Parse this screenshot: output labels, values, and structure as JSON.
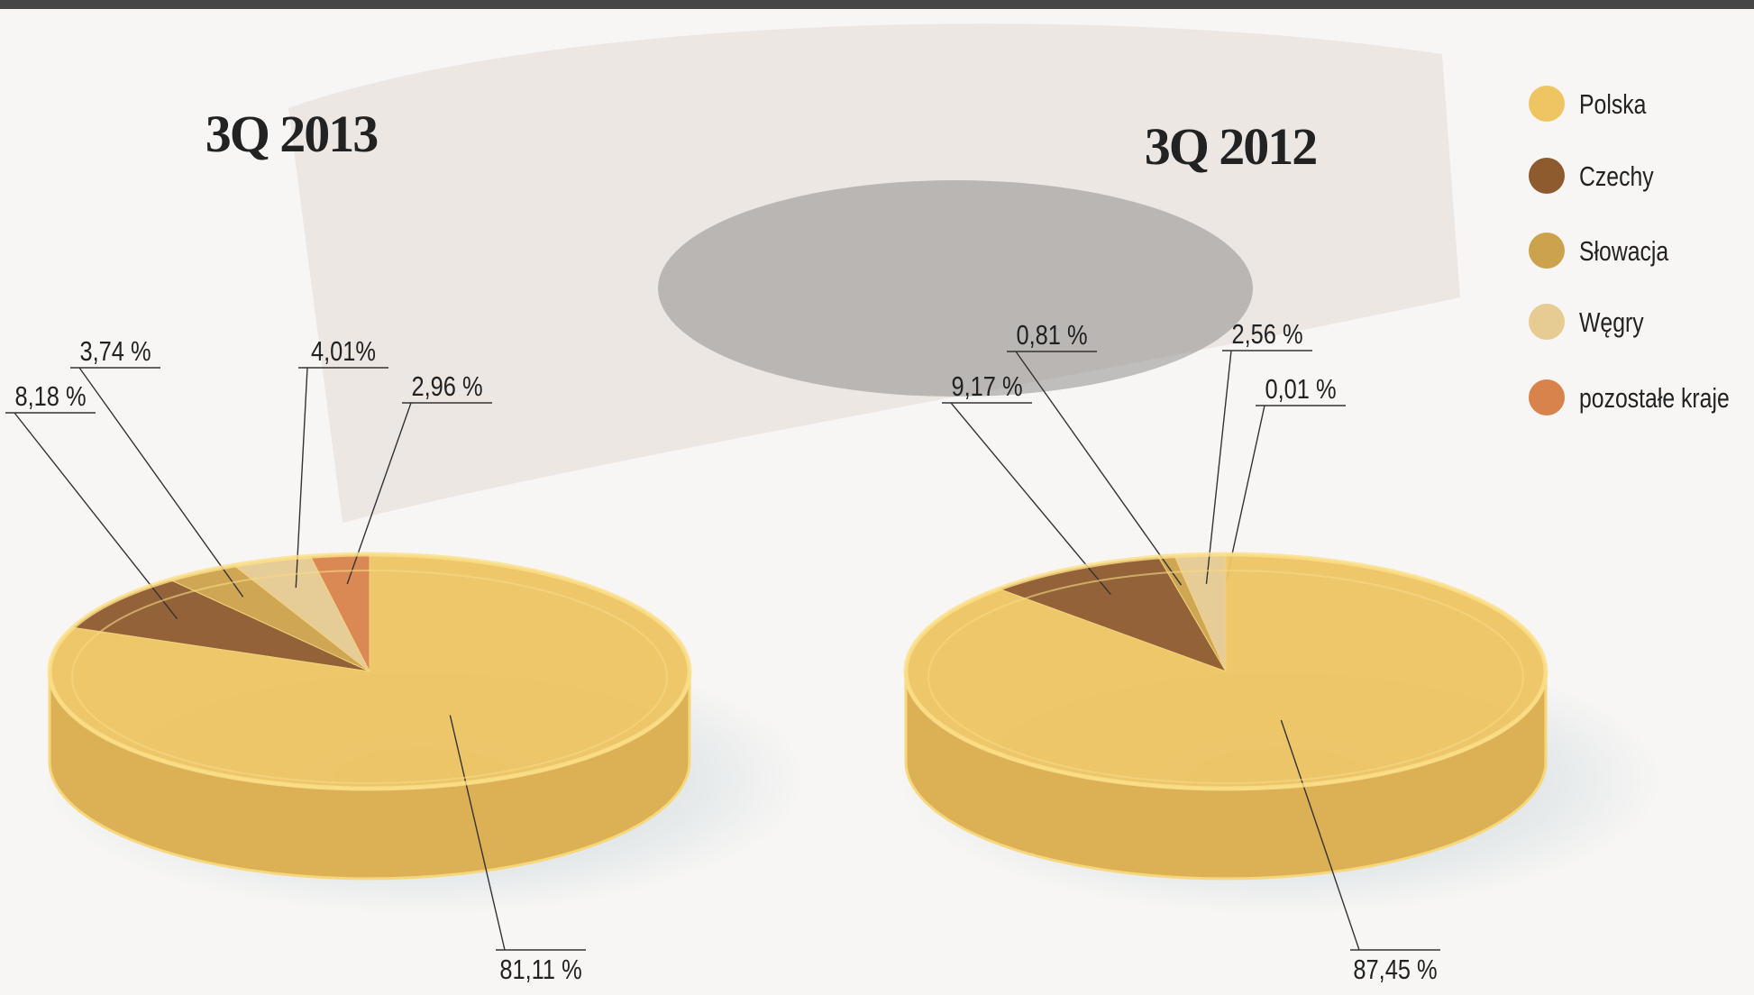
{
  "legend": {
    "labels": [
      "Polska",
      "Czechy",
      "Słowacja",
      "Węgry",
      "pozostałe kraje"
    ],
    "colors": [
      "#efc564",
      "#8e5b2e",
      "#cda24c",
      "#e6cb93",
      "#d9834c"
    ]
  },
  "chart_data": [
    {
      "type": "pie",
      "title": "3Q 2013",
      "values": [
        81.11,
        8.18,
        3.74,
        4.01,
        2.96
      ],
      "value_labels": [
        "81,11 %",
        "8,18 %",
        "3,74 %",
        "4,01%",
        "2,96 %"
      ]
    },
    {
      "type": "pie",
      "title": "3Q 2012",
      "values": [
        87.45,
        9.17,
        0.81,
        2.56,
        0.01
      ],
      "value_labels": [
        "87,45 %",
        "9,17 %",
        "0,81 %",
        "2,56 %",
        "0,01 %"
      ]
    }
  ]
}
